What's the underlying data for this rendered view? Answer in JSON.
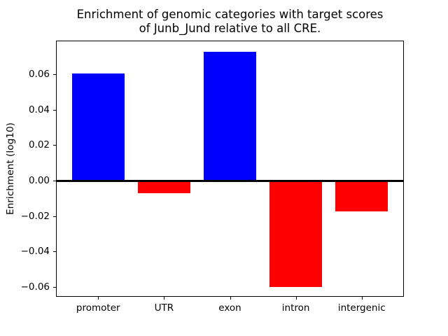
{
  "chart_data": {
    "type": "bar",
    "title": "Enrichment of genomic categories with target scores\nof Junb_Jund relative to all CRE.",
    "title_line1": "Enrichment of genomic categories with target scores",
    "title_line2": "of Junb_Jund relative to all CRE.",
    "categories": [
      "promoter",
      "UTR",
      "exon",
      "intron",
      "intergenic"
    ],
    "values": [
      0.0604,
      -0.007,
      0.0728,
      -0.0599,
      -0.0172
    ],
    "bar_colors": [
      "#0000ff",
      "#ff0000",
      "#0000ff",
      "#ff0000",
      "#ff0000"
    ],
    "positive_color": "#0000ff",
    "negative_color": "#ff0000",
    "xlabel": "",
    "ylabel": "Enrichment (log10)",
    "yticks": [
      0.06,
      0.04,
      0.02,
      0.0,
      -0.02,
      -0.04,
      -0.06
    ],
    "ytick_labels": [
      "0.06",
      "0.04",
      "0.02",
      "0.00",
      "−0.02",
      "−0.04",
      "−0.06"
    ],
    "ylim": [
      -0.0655,
      0.079
    ],
    "xlim": [
      -0.64,
      4.64
    ],
    "bar_width": 0.8,
    "grid": false,
    "legend": null,
    "zero_line": true,
    "axis_color": "#000000",
    "background_color": "#ffffff"
  }
}
